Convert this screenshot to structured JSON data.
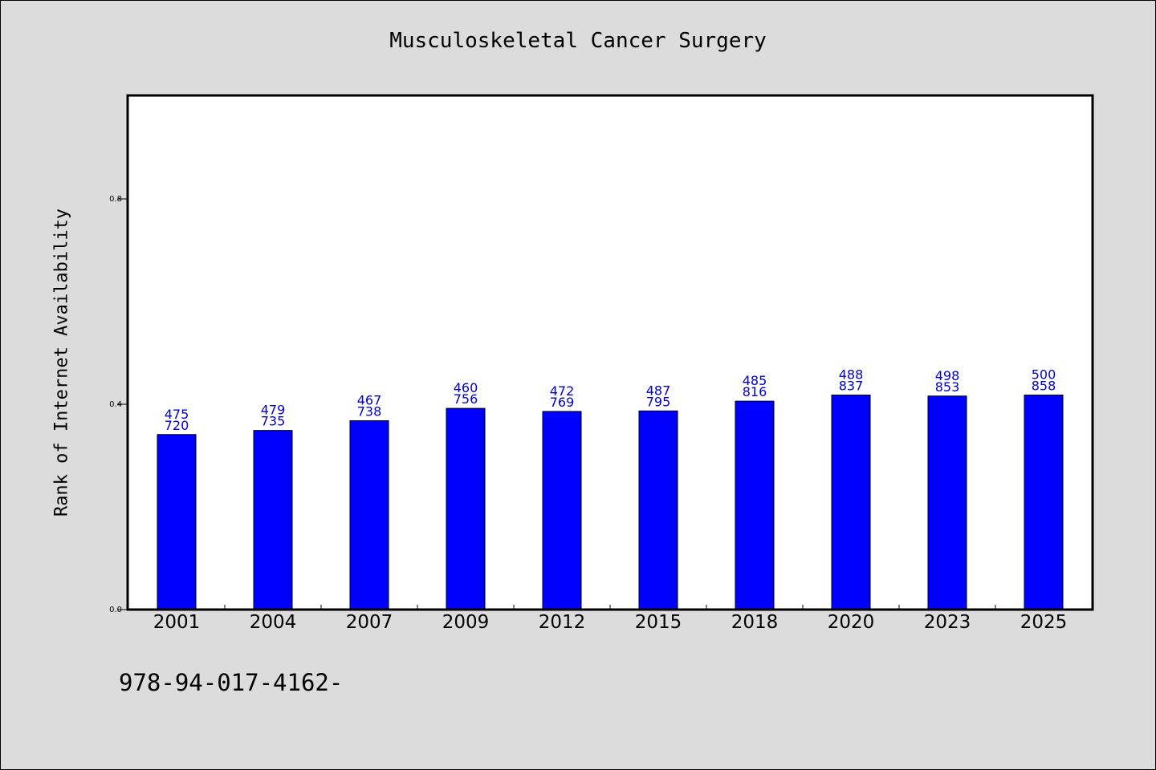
{
  "chart_data": {
    "type": "bar",
    "title": "Musculoskeletal Cancer Surgery",
    "xlabel": "",
    "ylabel": "Rank of Internet Availability",
    "ylim": [
      0,
      1.0
    ],
    "yticks": [
      0.0,
      0.4,
      0.8
    ],
    "ytick_labels": [
      "0.0",
      "0.4",
      "0.8"
    ],
    "categories": [
      "2001",
      "2004",
      "2007",
      "2009",
      "2012",
      "2015",
      "2018",
      "2020",
      "2023",
      "2025"
    ],
    "values": [
      0.341,
      0.349,
      0.368,
      0.392,
      0.386,
      0.387,
      0.406,
      0.418,
      0.416,
      0.418
    ],
    "label_top": [
      "475",
      "479",
      "467",
      "460",
      "472",
      "487",
      "485",
      "488",
      "498",
      "500"
    ],
    "label_bottom": [
      "720",
      "735",
      "738",
      "756",
      "769",
      "795",
      "816",
      "837",
      "853",
      "858"
    ],
    "bar_color": "#0000ff",
    "label_color": "#0000cc",
    "grid": false
  },
  "footer": {
    "text": "978-94-017-4162-"
  }
}
